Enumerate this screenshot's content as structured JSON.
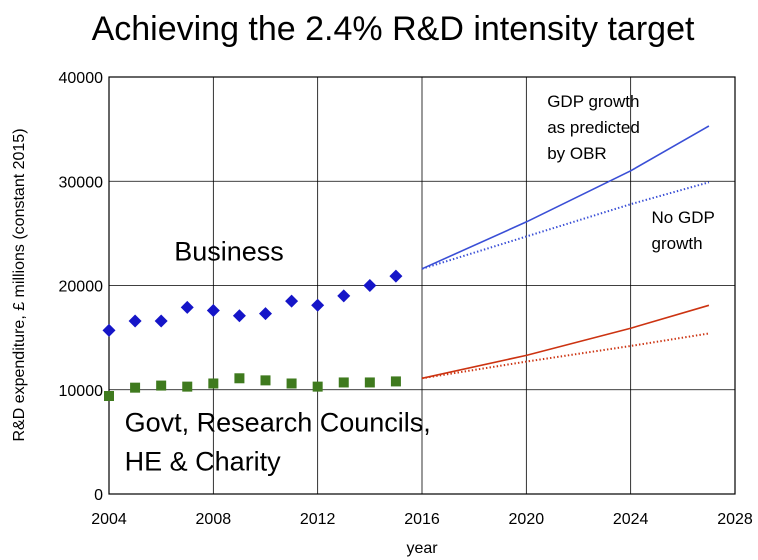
{
  "chart_data": {
    "type": "scatter",
    "title": "Achieving the 2.4% R&D intensity target",
    "xlabel": "year",
    "ylabel": "R&D expenditure, £ millions (constant 2015)",
    "xlim": [
      2004,
      2028
    ],
    "ylim": [
      0,
      40000
    ],
    "xticks": [
      2004,
      2008,
      2012,
      2016,
      2020,
      2024,
      2028
    ],
    "yticks": [
      0,
      10000,
      20000,
      30000,
      40000
    ],
    "grid": true,
    "series": [
      {
        "name": "Business",
        "kind": "scatter",
        "marker": "diamond",
        "color": "#1515c8",
        "x": [
          2004,
          2005,
          2006,
          2007,
          2008,
          2009,
          2010,
          2011,
          2012,
          2013,
          2014,
          2015
        ],
        "y": [
          15700,
          16600,
          16600,
          17900,
          17600,
          17100,
          17300,
          18500,
          18100,
          19000,
          20000,
          20900
        ]
      },
      {
        "name": "Govt, Research Councils, HE & Charity",
        "kind": "scatter",
        "marker": "square",
        "color": "#3f7a1e",
        "x": [
          2004,
          2005,
          2006,
          2007,
          2008,
          2009,
          2010,
          2011,
          2012,
          2013,
          2014,
          2015
        ],
        "y": [
          9400,
          10200,
          10400,
          10300,
          10600,
          11100,
          10900,
          10600,
          10300,
          10700,
          10700,
          10800
        ]
      },
      {
        "kind": "line",
        "style": "solid",
        "color": "#3a4fd6",
        "x": [
          2016,
          2020,
          2024,
          2027
        ],
        "y": [
          21600,
          26100,
          31000,
          35300
        ]
      },
      {
        "kind": "line",
        "style": "dotted",
        "color": "#3a4fd6",
        "x": [
          2016,
          2020,
          2024,
          2027
        ],
        "y": [
          21600,
          24700,
          27800,
          29900
        ]
      },
      {
        "kind": "line",
        "style": "solid",
        "color": "#cc3311",
        "x": [
          2016,
          2020,
          2024,
          2027
        ],
        "y": [
          11100,
          13300,
          15900,
          18100
        ]
      },
      {
        "kind": "line",
        "style": "dotted",
        "color": "#cc3311",
        "x": [
          2016,
          2020,
          2024,
          2027
        ],
        "y": [
          11100,
          12700,
          14200,
          15400
        ]
      }
    ],
    "annotations": [
      {
        "id": "business",
        "lines": [
          "Business"
        ],
        "x": 2006.5,
        "y": 22400,
        "size": "big"
      },
      {
        "id": "govt",
        "lines": [
          "Govt, Research Councils,",
          "HE & Charity"
        ],
        "x": 2004.6,
        "y": 6000,
        "size": "big"
      },
      {
        "id": "gdp",
        "lines": [
          "GDP growth",
          "as predicted",
          "by OBR"
        ],
        "x": 2020.8,
        "y": 37100,
        "size": "small"
      },
      {
        "id": "nogdp",
        "lines": [
          "No GDP",
          "growth"
        ],
        "x": 2024.8,
        "y": 26000,
        "size": "small"
      }
    ]
  }
}
